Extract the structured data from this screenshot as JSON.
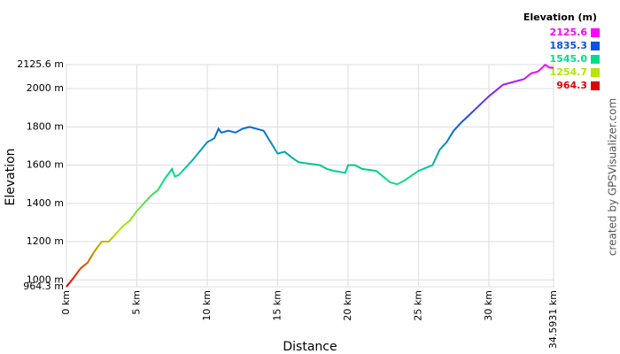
{
  "chart_data": {
    "type": "line",
    "x_label": "Distance",
    "y_label": "Elevation",
    "credit": "created by GPSVisualizer.com",
    "legend_title": "Elevation (m)",
    "color_scale": [
      {
        "value": 2125.6,
        "label": "2125.6",
        "color": "#ff00ff"
      },
      {
        "value": 1835.3,
        "label": "1835.3",
        "color": "#0a50e6"
      },
      {
        "value": 1545.0,
        "label": "1545.0",
        "color": "#00dc8c"
      },
      {
        "value": 1254.7,
        "label": "1254.7",
        "color": "#b4e600"
      },
      {
        "value": 964.3,
        "label": "964.3",
        "color": "#e00000"
      }
    ],
    "xlim": [
      0,
      34.5931
    ],
    "ylim": [
      964.3,
      2125.6
    ],
    "xticks": [
      {
        "value": 0,
        "label": "0 km"
      },
      {
        "value": 5,
        "label": "5 km"
      },
      {
        "value": 10,
        "label": "10 km"
      },
      {
        "value": 15,
        "label": "15 km"
      },
      {
        "value": 20,
        "label": "20 km"
      },
      {
        "value": 25,
        "label": "25 km"
      },
      {
        "value": 30,
        "label": "30 km"
      },
      {
        "value": 34.5931,
        "label": "34.5931 km"
      }
    ],
    "yticks": [
      {
        "value": 964.3,
        "label": "964.3 m"
      },
      {
        "value": 1000,
        "label": "1000 m"
      },
      {
        "value": 1200,
        "label": "1200 m"
      },
      {
        "value": 1400,
        "label": "1400 m"
      },
      {
        "value": 1600,
        "label": "1600 m"
      },
      {
        "value": 1800,
        "label": "1800 m"
      },
      {
        "value": 2000,
        "label": "2000 m"
      },
      {
        "value": 2125.6,
        "label": "2125.6 m"
      }
    ],
    "grid": true,
    "x": [
      0,
      0.5,
      1,
      1.5,
      2,
      2.5,
      3,
      3.5,
      4,
      4.5,
      5,
      5.5,
      6,
      6.5,
      7,
      7.5,
      7.7,
      8,
      9,
      10,
      10.5,
      10.8,
      11,
      11.5,
      12,
      12.5,
      13,
      13.5,
      14,
      14.5,
      15,
      15.5,
      16,
      16.5,
      17,
      18,
      18.5,
      19,
      19.8,
      20,
      20.5,
      21,
      22,
      22.5,
      23,
      23.5,
      24,
      25,
      26,
      26.5,
      27,
      27.5,
      28,
      29,
      30,
      30.5,
      31,
      32,
      32.5,
      33,
      33.5,
      34,
      34.3,
      34.5931
    ],
    "values": [
      964,
      1010,
      1060,
      1090,
      1150,
      1200,
      1200,
      1240,
      1280,
      1310,
      1360,
      1400,
      1440,
      1470,
      1530,
      1580,
      1540,
      1550,
      1630,
      1720,
      1740,
      1790,
      1770,
      1780,
      1770,
      1790,
      1800,
      1790,
      1780,
      1720,
      1660,
      1670,
      1640,
      1615,
      1610,
      1600,
      1580,
      1570,
      1560,
      1600,
      1600,
      1580,
      1570,
      1540,
      1510,
      1500,
      1520,
      1570,
      1600,
      1680,
      1720,
      1780,
      1820,
      1890,
      1960,
      1990,
      2020,
      2040,
      2050,
      2080,
      2090,
      2125,
      2110,
      2110
    ]
  }
}
